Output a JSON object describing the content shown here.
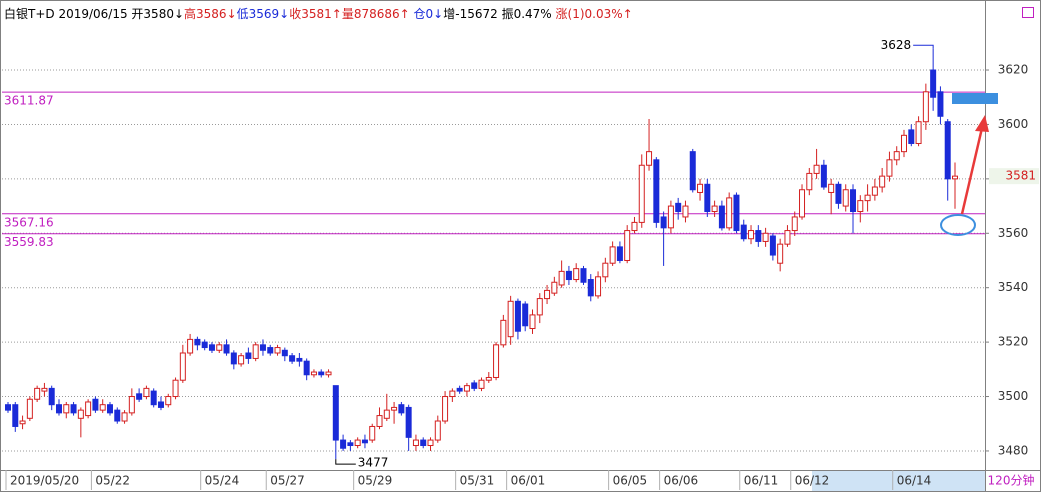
{
  "chart_data": {
    "type": "candlestick",
    "header": [
      {
        "text": "白银T+D 2019/06/15 ",
        "color": "#000000"
      },
      {
        "text": "开3580↓",
        "color": "#000000"
      },
      {
        "text": "高3586↓",
        "color": "#d42020"
      },
      {
        "text": "低3569↓",
        "color": "#1a2bd8"
      },
      {
        "text": "收3581↑",
        "color": "#d42020"
      },
      {
        "text": "量878686↑",
        "color": "#d42020"
      },
      {
        "text": " 仓0↓",
        "color": "#1a2bd8"
      },
      {
        "text": "增-15672 振0.47% ",
        "color": "#000000"
      },
      {
        "text": "涨(1)0.03%↑",
        "color": "#d42020"
      }
    ],
    "period": "120分钟",
    "up_color": "#d42020",
    "down_color": "#1a2bd8",
    "level_color": "#c020c0",
    "ylim": [
      3473,
      3645
    ],
    "yticks": [
      3480,
      3500,
      3520,
      3540,
      3560,
      3580,
      3600,
      3620
    ],
    "grid": true,
    "levels": [
      3611.87,
      3567.16,
      3559.83
    ],
    "high_mark": 3628,
    "low_mark": 3477,
    "last_price": 3581,
    "categories": [
      "2019/05/20",
      null,
      null,
      null,
      null,
      null,
      null,
      null,
      null,
      null,
      null,
      null,
      "05/22",
      null,
      null,
      null,
      null,
      null,
      null,
      null,
      null,
      null,
      null,
      null,
      null,
      null,
      null,
      "05/24",
      null,
      null,
      null,
      null,
      null,
      null,
      null,
      null,
      "05/27",
      null,
      null,
      null,
      null,
      null,
      null,
      null,
      null,
      null,
      null,
      null,
      "05/29",
      null,
      null,
      null,
      null,
      null,
      null,
      null,
      null,
      null,
      null,
      null,
      null,
      null,
      "05/31",
      null,
      null,
      null,
      null,
      null,
      null,
      "06/01",
      null,
      null,
      null,
      null,
      null,
      null,
      null,
      null,
      null,
      null,
      null,
      null,
      null,
      "06/05",
      null,
      null,
      null,
      null,
      null,
      null,
      "06/06",
      null,
      null,
      null,
      null,
      null,
      null,
      null,
      null,
      null,
      null,
      "06/11",
      null,
      null,
      null,
      null,
      null,
      null,
      "06/12",
      null,
      null,
      null,
      null,
      null,
      null,
      null,
      null,
      null,
      null,
      null,
      null,
      null,
      "06/14",
      null,
      null,
      null,
      null,
      null,
      null,
      null,
      null
    ],
    "open": [
      3497,
      3497,
      3490,
      3492,
      3499,
      3502,
      3503,
      3497,
      3494,
      3497,
      3492,
      3493,
      3499,
      3495,
      3497,
      3495,
      3491,
      3494,
      3501,
      3500,
      3502,
      3498,
      3497,
      3500,
      3506,
      3516,
      3521,
      3520,
      3519,
      3517,
      3519,
      3516,
      3512,
      3516,
      3514,
      3519,
      3518,
      3516,
      3517,
      3515,
      3514,
      3513,
      3508,
      3509,
      3508,
      3504,
      3484,
      3483,
      3482,
      3484,
      3484,
      3489,
      3492,
      3495,
      3497,
      3496,
      3482,
      3484,
      3482,
      3484,
      3491,
      3500,
      3503,
      3502,
      3505,
      3503,
      3506,
      3507,
      3519,
      3522,
      3535,
      3534,
      3525,
      3530,
      3536,
      3538,
      3541,
      3546,
      3543,
      3547,
      3543,
      3537,
      3544,
      3549,
      3555,
      3550,
      3561,
      3564,
      3585,
      3587,
      3566,
      3562,
      3571,
      3566,
      3590,
      3575,
      3578,
      3568,
      3570,
      3562,
      3574,
      3563,
      3558,
      3561,
      3557,
      3559,
      3549,
      3556,
      3561,
      3566,
      3576,
      3582,
      3585,
      3575,
      3578,
      3570,
      3576,
      3568,
      3572,
      3574,
      3577,
      3581,
      3587,
      3590,
      3598,
      3593,
      3601,
      3620,
      3612,
      3601,
      3580
    ],
    "high": [
      3498,
      3498,
      3493,
      3500,
      3504,
      3505,
      3504,
      3499,
      3498,
      3498,
      3496,
      3499,
      3500,
      3499,
      3498,
      3496,
      3495,
      3503,
      3503,
      3504,
      3503,
      3500,
      3501,
      3507,
      3519,
      3523,
      3522,
      3521,
      3520,
      3520,
      3521,
      3517,
      3516,
      3518,
      3520,
      3521,
      3519,
      3519,
      3518,
      3516,
      3516,
      3514,
      3510,
      3510,
      3510,
      3504,
      3486,
      3484,
      3485,
      3486,
      3490,
      3496,
      3501,
      3498,
      3498,
      3497,
      3486,
      3485,
      3485,
      3493,
      3502,
      3503,
      3504,
      3505,
      3506,
      3507,
      3509,
      3520,
      3530,
      3537,
      3536,
      3535,
      3532,
      3538,
      3541,
      3544,
      3550,
      3548,
      3549,
      3548,
      3545,
      3546,
      3551,
      3557,
      3557,
      3563,
      3566,
      3589,
      3602,
      3588,
      3568,
      3572,
      3573,
      3572,
      3591,
      3580,
      3580,
      3572,
      3572,
      3575,
      3575,
      3565,
      3563,
      3563,
      3562,
      3560,
      3558,
      3563,
      3568,
      3578,
      3584,
      3591,
      3587,
      3580,
      3579,
      3578,
      3578,
      3574,
      3578,
      3580,
      3584,
      3590,
      3592,
      3598,
      3600,
      3603,
      3615,
      3628,
      3614,
      3602,
      3586
    ],
    "low": [
      3494,
      3487,
      3488,
      3491,
      3498,
      3500,
      3495,
      3493,
      3492,
      3493,
      3485,
      3492,
      3494,
      3494,
      3493,
      3490,
      3490,
      3493,
      3498,
      3499,
      3496,
      3495,
      3496,
      3499,
      3505,
      3515,
      3517,
      3517,
      3516,
      3516,
      3515,
      3510,
      3511,
      3512,
      3513,
      3515,
      3515,
      3515,
      3513,
      3512,
      3511,
      3506,
      3507,
      3507,
      3507,
      3477,
      3480,
      3480,
      3481,
      3481,
      3483,
      3488,
      3491,
      3490,
      3493,
      3480,
      3480,
      3481,
      3480,
      3483,
      3490,
      3498,
      3501,
      3500,
      3502,
      3502,
      3505,
      3506,
      3518,
      3519,
      3521,
      3524,
      3523,
      3527,
      3534,
      3537,
      3540,
      3541,
      3542,
      3541,
      3535,
      3536,
      3542,
      3548,
      3549,
      3549,
      3560,
      3562,
      3583,
      3562,
      3548,
      3560,
      3565,
      3564,
      3575,
      3572,
      3566,
      3566,
      3561,
      3561,
      3560,
      3557,
      3556,
      3555,
      3555,
      3550,
      3546,
      3555,
      3559,
      3565,
      3574,
      3580,
      3576,
      3567,
      3569,
      3568,
      3560,
      3564,
      3568,
      3572,
      3575,
      3579,
      3585,
      3588,
      3592,
      3592,
      3598,
      3605,
      3600,
      3572,
      3569
    ],
    "close": [
      3495,
      3489,
      3491,
      3499,
      3503,
      3503,
      3497,
      3494,
      3497,
      3494,
      3495,
      3498,
      3495,
      3497,
      3494,
      3491,
      3494,
      3500,
      3499,
      3503,
      3497,
      3496,
      3500,
      3506,
      3516,
      3521,
      3519,
      3518,
      3517,
      3519,
      3516,
      3512,
      3515,
      3514,
      3519,
      3517,
      3516,
      3518,
      3515,
      3513,
      3513,
      3508,
      3509,
      3508,
      3509,
      3484,
      3481,
      3482,
      3484,
      3483,
      3489,
      3493,
      3495,
      3496,
      3494,
      3485,
      3484,
      3482,
      3484,
      3491,
      3500,
      3502,
      3502,
      3504,
      3503,
      3506,
      3507,
      3519,
      3528,
      3535,
      3524,
      3526,
      3530,
      3536,
      3539,
      3542,
      3546,
      3543,
      3547,
      3542,
      3537,
      3544,
      3549,
      3555,
      3550,
      3561,
      3564,
      3585,
      3590,
      3564,
      3562,
      3570,
      3568,
      3570,
      3576,
      3578,
      3568,
      3570,
      3562,
      3573,
      3561,
      3558,
      3561,
      3557,
      3560,
      3552,
      3556,
      3561,
      3566,
      3576,
      3582,
      3585,
      3577,
      3578,
      3571,
      3576,
      3568,
      3572,
      3574,
      3577,
      3581,
      3587,
      3590,
      3596,
      3593,
      3601,
      3612,
      3610,
      3603,
      3580,
      3581
    ]
  }
}
